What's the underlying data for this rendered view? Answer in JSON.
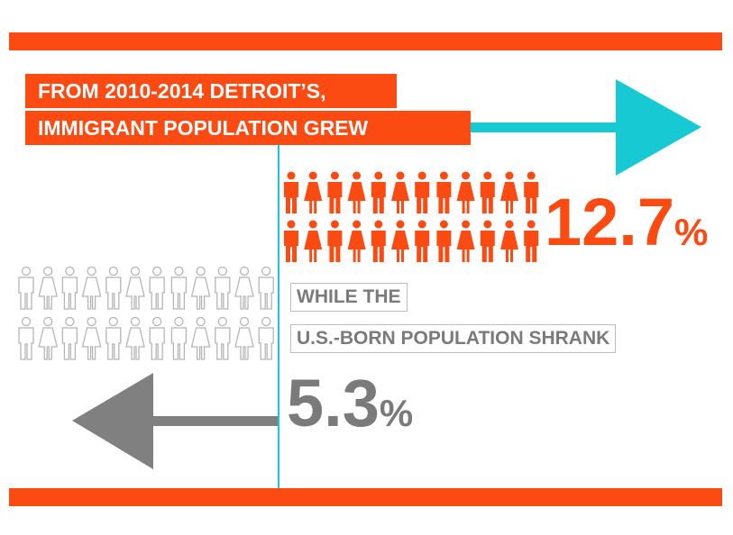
{
  "colors": {
    "orange": "#fb4a12",
    "teal": "#17c9d3",
    "gray": "#7a7a7a",
    "outline": "#b5b5b5"
  },
  "headline": {
    "line1": "FROM 2010-2014 DETROIT’S,",
    "line2": "IMMIGRANT POPULATION GREW"
  },
  "immigrant": {
    "value": "12.7",
    "unit": "%",
    "rows": 2,
    "icons_per_row": 12,
    "arrow_direction": "right"
  },
  "us_born": {
    "label1": "WHILE THE",
    "label2": "U.S.-BORN POPULATION SHRANK",
    "value": "5.3",
    "unit": "%",
    "rows": 2,
    "icons_per_row": 12,
    "arrow_direction": "left"
  },
  "icon_pattern": [
    "man",
    "woman",
    "man",
    "woman",
    "man",
    "woman",
    "man",
    "man",
    "woman",
    "man",
    "woman",
    "man"
  ]
}
